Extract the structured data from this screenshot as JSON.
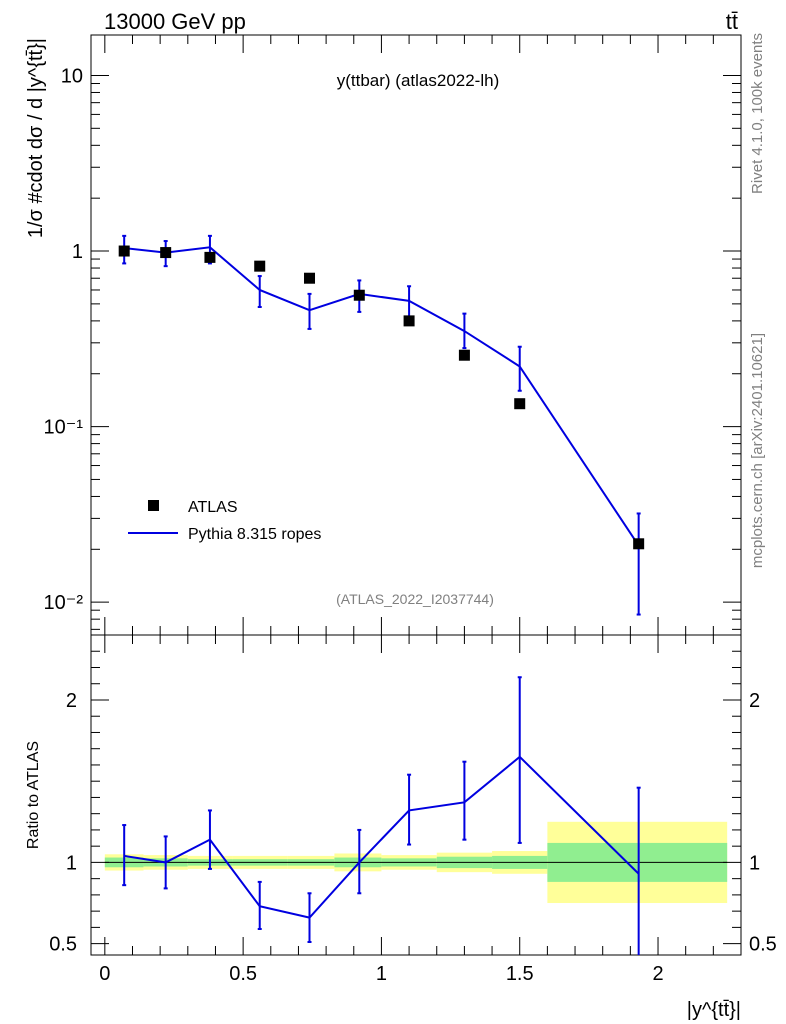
{
  "header": {
    "energy_label": "13000 GeV pp",
    "process_label": "tt̄"
  },
  "side_labels": {
    "rivet": "Rivet 4.1.0,  100k events",
    "mcplots": "mcplots.cern.ch [arXiv:2401.10621]"
  },
  "colors": {
    "data": "#000000",
    "mc": "#0000e0",
    "band_inner": "#90ee90",
    "band_outer": "#ffff99"
  },
  "chart_data": [
    {
      "type": "scatter",
      "panel": "main",
      "title": "y(ttbar) (atlas2022-lh)",
      "watermark": "(ATLAS_2022_I2037744)",
      "ylabel": "1/σ #cdot dσ / d |y^{tt̄}|",
      "yscale": "log",
      "ylim": [
        0.0065,
        17
      ],
      "xlim": [
        -0.05,
        2.3
      ],
      "x_ticks": [
        0,
        0.5,
        1,
        1.5,
        2
      ],
      "y_ticks": [
        {
          "value": 10,
          "label": "10"
        },
        {
          "value": 1,
          "label": "1"
        },
        {
          "value": 0.1,
          "label": "10⁻¹"
        },
        {
          "value": 0.01,
          "label": "10⁻²"
        }
      ],
      "legend": {
        "position": "bottom-left",
        "entries": [
          "ATLAS",
          "Pythia 8.315 ropes"
        ]
      },
      "series": [
        {
          "name": "ATLAS",
          "x": [
            0.07,
            0.22,
            0.38,
            0.56,
            0.74,
            0.92,
            1.1,
            1.3,
            1.5,
            1.93
          ],
          "y": [
            1.0,
            0.98,
            0.92,
            0.82,
            0.7,
            0.56,
            0.4,
            0.255,
            0.135,
            0.0215
          ]
        },
        {
          "name": "Pythia 8.315 ropes",
          "x": [
            0.07,
            0.22,
            0.38,
            0.56,
            0.74,
            0.92,
            1.1,
            1.3,
            1.5,
            1.93
          ],
          "y": [
            1.04,
            0.98,
            1.05,
            0.6,
            0.46,
            0.57,
            0.52,
            0.35,
            0.22,
            0.021
          ],
          "y_low": [
            0.85,
            0.82,
            0.85,
            0.48,
            0.36,
            0.45,
            0.41,
            0.28,
            0.16,
            0.0085
          ],
          "y_high": [
            1.22,
            1.14,
            1.22,
            0.72,
            0.57,
            0.68,
            0.63,
            0.44,
            0.285,
            0.032
          ]
        }
      ]
    },
    {
      "type": "line",
      "panel": "ratio",
      "ylabel": "Ratio to ATLAS",
      "xlabel": "|y^{tt̄}|",
      "ylim": [
        0.43,
        2.4
      ],
      "xlim": [
        -0.05,
        2.3
      ],
      "x_ticks": [
        {
          "value": 0,
          "label": "0"
        },
        {
          "value": 0.5,
          "label": "0.5"
        },
        {
          "value": 1,
          "label": "1"
        },
        {
          "value": 1.5,
          "label": "1.5"
        },
        {
          "value": 2,
          "label": "2"
        }
      ],
      "y_ticks": [
        {
          "value": 0.5,
          "label": "0.5"
        },
        {
          "value": 1,
          "label": "1"
        },
        {
          "value": 2,
          "label": "2"
        }
      ],
      "bins": [
        0,
        0.14,
        0.3,
        0.46,
        0.66,
        0.83,
        1.0,
        1.2,
        1.4,
        1.6,
        2.25
      ],
      "band_inner": [
        0.03,
        0.025,
        0.02,
        0.02,
        0.02,
        0.03,
        0.025,
        0.035,
        0.04,
        0.12
      ],
      "band_outer": [
        0.05,
        0.045,
        0.04,
        0.04,
        0.04,
        0.055,
        0.045,
        0.06,
        0.07,
        0.25
      ],
      "series": [
        {
          "name": "Pythia 8.315 ropes",
          "x": [
            0.07,
            0.22,
            0.38,
            0.56,
            0.74,
            0.92,
            1.1,
            1.3,
            1.5,
            1.93
          ],
          "y": [
            1.04,
            1.0,
            1.14,
            0.73,
            0.66,
            1.0,
            1.32,
            1.37,
            1.65,
            0.93
          ],
          "y_low": [
            0.86,
            0.84,
            0.96,
            0.59,
            0.51,
            0.81,
            1.11,
            1.14,
            1.12,
            0.4
          ],
          "y_high": [
            1.23,
            1.16,
            1.32,
            0.88,
            0.81,
            1.2,
            1.54,
            1.62,
            2.14,
            1.46
          ]
        }
      ]
    }
  ]
}
